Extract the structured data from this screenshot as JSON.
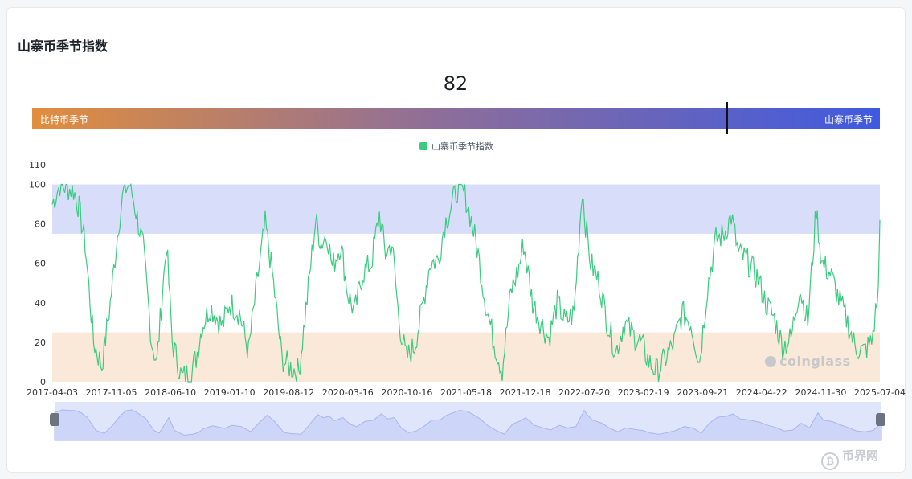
{
  "panel": {
    "title": "山寨币季节指数"
  },
  "gauge": {
    "left_label": "比特币季节",
    "right_label": "山寨币季节",
    "value": 82,
    "value_text": "82",
    "marker_fraction": 0.82
  },
  "watermark": "coinglass",
  "site_logo": "币界网",
  "chart_data": {
    "type": "line",
    "title": "",
    "legend": [
      "山寨币季节指数"
    ],
    "legend_position": "top-center",
    "ylim": [
      0,
      110
    ],
    "y_ticks": [
      "0",
      "20",
      "40",
      "60",
      "80",
      "100",
      "110"
    ],
    "x_tick_labels": [
      "2017-04-03",
      "2017-11-05",
      "2018-06-10",
      "2019-01-10",
      "2019-08-12",
      "2020-03-16",
      "2020-10-16",
      "2021-05-18",
      "2021-12-18",
      "2022-07-20",
      "2023-02-19",
      "2023-09-21",
      "2024-04-22",
      "2024-11-30",
      "2025-07-04"
    ],
    "x_range": [
      "2017-04-03",
      "2025-07-10"
    ],
    "bands": [
      {
        "from": 75,
        "to": 100,
        "color": "#d8defa"
      },
      {
        "from": 0,
        "to": 25,
        "color": "#fae8d8"
      }
    ],
    "colors": {
      "line": "#3ccb7f",
      "axis_text": "#333333"
    },
    "series": [
      {
        "name": "山寨币季节指数",
        "x": [
          "2017-04-03",
          "2017-05-01",
          "2017-06-01",
          "2017-06-20",
          "2017-07-10",
          "2017-08-01",
          "2017-09-01",
          "2017-10-01",
          "2017-11-01",
          "2017-12-01",
          "2017-12-20",
          "2018-01-10",
          "2018-01-25",
          "2018-03-01",
          "2018-04-01",
          "2018-04-20",
          "2018-05-10",
          "2018-05-25",
          "2018-06-15",
          "2018-07-20",
          "2018-08-20",
          "2018-09-10",
          "2018-10-01",
          "2018-11-01",
          "2018-12-15",
          "2019-01-10",
          "2019-02-15",
          "2019-03-20",
          "2019-04-20",
          "2019-05-20",
          "2019-06-15",
          "2019-07-20",
          "2019-08-12",
          "2019-09-20",
          "2019-10-20",
          "2019-11-20",
          "2019-12-10",
          "2020-01-01",
          "2020-01-20",
          "2020-02-20",
          "2020-03-16",
          "2020-04-10",
          "2020-05-10",
          "2020-06-10",
          "2020-07-10",
          "2020-08-01",
          "2020-08-25",
          "2020-09-20",
          "2020-10-16",
          "2020-11-15",
          "2020-12-10",
          "2021-01-10",
          "2021-02-10",
          "2021-03-05",
          "2021-04-01",
          "2021-04-20",
          "2021-05-18",
          "2021-06-10",
          "2021-07-05",
          "2021-08-01",
          "2021-09-01",
          "2021-10-01",
          "2021-11-01",
          "2021-12-01",
          "2021-12-18",
          "2022-01-20",
          "2022-02-20",
          "2022-03-20",
          "2022-04-20",
          "2022-05-20",
          "2022-06-20",
          "2022-07-20",
          "2022-08-01",
          "2022-08-20",
          "2022-09-20",
          "2022-10-20",
          "2022-11-20",
          "2022-12-20",
          "2023-01-20",
          "2023-02-19",
          "2023-03-20",
          "2023-04-20",
          "2023-05-20",
          "2023-06-20",
          "2023-07-20",
          "2023-08-20",
          "2023-09-21",
          "2023-10-20",
          "2023-11-20",
          "2023-12-20",
          "2024-01-15",
          "2024-02-10",
          "2024-03-10",
          "2024-04-22",
          "2024-05-20",
          "2024-06-20",
          "2024-07-20",
          "2024-08-20",
          "2024-09-20",
          "2024-10-20",
          "2024-11-20",
          "2024-12-10",
          "2025-01-10",
          "2025-02-10",
          "2025-03-10",
          "2025-04-10",
          "2025-05-10",
          "2025-06-10",
          "2025-07-04",
          "2025-07-10"
        ],
        "values": [
          90,
          100,
          98,
          97,
          88,
          70,
          20,
          8,
          40,
          80,
          97,
          100,
          92,
          68,
          20,
          10,
          45,
          70,
          20,
          2,
          5,
          12,
          28,
          38,
          28,
          40,
          35,
          15,
          50,
          80,
          55,
          12,
          8,
          5,
          42,
          82,
          70,
          75,
          58,
          70,
          45,
          35,
          55,
          60,
          85,
          65,
          70,
          30,
          12,
          18,
          35,
          60,
          62,
          80,
          90,
          98,
          95,
          82,
          65,
          40,
          20,
          6,
          45,
          58,
          70,
          40,
          30,
          22,
          40,
          30,
          35,
          98,
          80,
          60,
          50,
          30,
          15,
          30,
          24,
          20,
          10,
          5,
          12,
          20,
          35,
          30,
          10,
          48,
          72,
          75,
          84,
          65,
          62,
          52,
          40,
          32,
          18,
          22,
          48,
          30,
          88,
          60,
          55,
          42,
          32,
          18,
          15,
          20,
          45,
          82
        ]
      }
    ]
  }
}
